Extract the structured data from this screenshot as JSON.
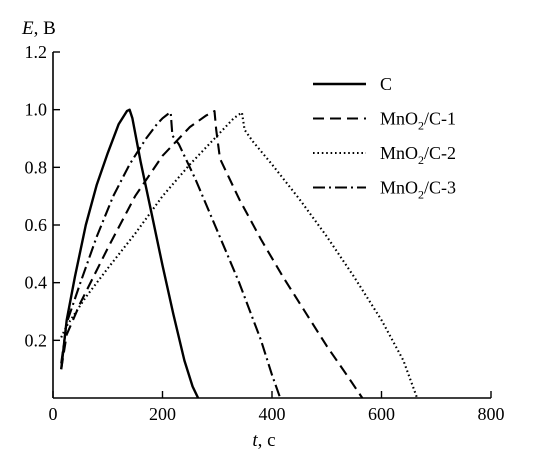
{
  "chart_data": {
    "type": "line",
    "title": "",
    "xlabel": {
      "var": "t",
      "unit": ", с"
    },
    "ylabel": {
      "var": "E",
      "unit": ", В"
    },
    "xlim": [
      0,
      800
    ],
    "ylim": [
      0,
      1.2
    ],
    "xticks": [
      0,
      200,
      400,
      600,
      800
    ],
    "xtick_labels": [
      "0",
      "200",
      "400",
      "600",
      "800"
    ],
    "yticks": [
      0.2,
      0.4,
      0.6,
      0.8,
      1.0,
      1.2
    ],
    "ytick_labels": [
      "0.2",
      "0.4",
      "0.6",
      "0.8",
      "1.0",
      "1.2"
    ],
    "grid": false,
    "legend_position": "top-right",
    "series": [
      {
        "name": "C",
        "dash": "solid",
        "x": [
          15,
          25,
          40,
          60,
          80,
          100,
          120,
          135,
          140,
          145,
          160,
          180,
          200,
          220,
          240,
          255,
          265
        ],
        "y": [
          0.1,
          0.27,
          0.42,
          0.6,
          0.74,
          0.85,
          0.95,
          0.995,
          1.0,
          0.97,
          0.82,
          0.64,
          0.46,
          0.29,
          0.13,
          0.04,
          0.0
        ]
      },
      {
        "name": "MnO₂/C-1",
        "dash": "dashed",
        "x": [
          15,
          25,
          50,
          100,
          150,
          200,
          250,
          280,
          295,
          298,
          305,
          340,
          380,
          420,
          460,
          500,
          540,
          565
        ],
        "y": [
          0.1,
          0.22,
          0.33,
          0.52,
          0.7,
          0.84,
          0.94,
          0.98,
          0.995,
          0.93,
          0.83,
          0.69,
          0.55,
          0.42,
          0.3,
          0.18,
          0.07,
          0.0
        ]
      },
      {
        "name": "MnO₂/C-2",
        "dash": "dotted",
        "x": [
          15,
          25,
          60,
          100,
          150,
          200,
          250,
          300,
          330,
          345,
          350,
          365,
          400,
          450,
          500,
          550,
          600,
          640,
          665
        ],
        "y": [
          0.21,
          0.25,
          0.35,
          0.45,
          0.57,
          0.7,
          0.81,
          0.91,
          0.97,
          0.99,
          0.93,
          0.89,
          0.81,
          0.69,
          0.56,
          0.42,
          0.27,
          0.13,
          0.0
        ]
      },
      {
        "name": "MnO₂/C-3",
        "dash": "dash-dot",
        "x": [
          15,
          25,
          50,
          80,
          110,
          140,
          170,
          190,
          200,
          210,
          215,
          218,
          230,
          260,
          300,
          340,
          380,
          400,
          415
        ],
        "y": [
          0.12,
          0.26,
          0.4,
          0.56,
          0.7,
          0.81,
          0.9,
          0.95,
          0.97,
          0.985,
          0.99,
          0.91,
          0.88,
          0.76,
          0.58,
          0.4,
          0.2,
          0.08,
          0.0
        ]
      }
    ],
    "legend": {
      "items": [
        {
          "text": "C",
          "dash": "solid"
        },
        {
          "base": "MnO",
          "sub": "2",
          "rest": "/C-1",
          "dash": "dashed"
        },
        {
          "base": "MnO",
          "sub": "2",
          "rest": "/C-2",
          "dash": "dotted"
        },
        {
          "base": "MnO",
          "sub": "2",
          "rest": "/C-3",
          "dash": "dash-dot"
        }
      ]
    }
  }
}
